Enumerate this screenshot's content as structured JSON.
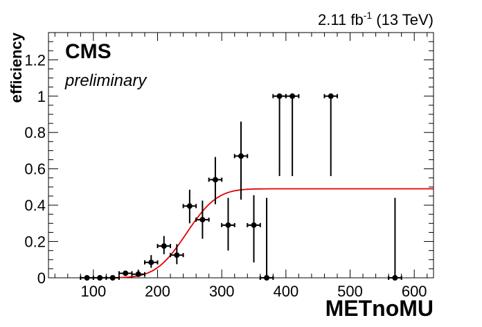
{
  "chart_data": {
    "type": "scatter",
    "xlabel": "METnoMU",
    "ylabel": "efficiency",
    "xlim": [
      30,
      630
    ],
    "ylim": [
      0,
      1.35
    ],
    "x_ticks": [
      "100",
      "200",
      "300",
      "400",
      "500",
      "600"
    ],
    "y_ticks": [
      "0",
      "0.2",
      "0.4",
      "0.6",
      "0.8",
      "1",
      "1.2"
    ],
    "lumi_label": "2.11 fb",
    "lumi_exponent": "-1",
    "energy_label": " (13 TeV)",
    "experiment": "CMS",
    "status": "preliminary",
    "grid": false,
    "colors": {
      "points": "#000000",
      "fit": "#e00000"
    },
    "points": [
      {
        "x": 90,
        "xerr": 10,
        "y": 0.0,
        "ylo": 0.0,
        "yhi": 0.005
      },
      {
        "x": 110,
        "xerr": 10,
        "y": 0.0,
        "ylo": 0.0,
        "yhi": 0.005
      },
      {
        "x": 130,
        "xerr": 10,
        "y": 0.0,
        "ylo": 0.0,
        "yhi": 0.008
      },
      {
        "x": 150,
        "xerr": 10,
        "y": 0.025,
        "ylo": 0.015,
        "yhi": 0.04
      },
      {
        "x": 170,
        "xerr": 10,
        "y": 0.02,
        "ylo": 0.005,
        "yhi": 0.045
      },
      {
        "x": 190,
        "xerr": 10,
        "y": 0.085,
        "ylo": 0.055,
        "yhi": 0.125
      },
      {
        "x": 210,
        "xerr": 10,
        "y": 0.175,
        "ylo": 0.13,
        "yhi": 0.23
      },
      {
        "x": 230,
        "xerr": 10,
        "y": 0.125,
        "ylo": 0.075,
        "yhi": 0.185
      },
      {
        "x": 250,
        "xerr": 10,
        "y": 0.395,
        "ylo": 0.3,
        "yhi": 0.485
      },
      {
        "x": 270,
        "xerr": 10,
        "y": 0.32,
        "ylo": 0.215,
        "yhi": 0.425
      },
      {
        "x": 290,
        "xerr": 10,
        "y": 0.54,
        "ylo": 0.405,
        "yhi": 0.665
      },
      {
        "x": 310,
        "xerr": 10,
        "y": 0.29,
        "ylo": 0.15,
        "yhi": 0.44
      },
      {
        "x": 330,
        "xerr": 10,
        "y": 0.67,
        "ylo": 0.43,
        "yhi": 0.86
      },
      {
        "x": 350,
        "xerr": 10,
        "y": 0.29,
        "ylo": 0.085,
        "yhi": 0.455
      },
      {
        "x": 370,
        "xerr": 10,
        "y": 0.0,
        "ylo": 0.0,
        "yhi": 0.44
      },
      {
        "x": 390,
        "xerr": 10,
        "y": 1.0,
        "ylo": 0.56,
        "yhi": 1.0
      },
      {
        "x": 410,
        "xerr": 10,
        "y": 1.0,
        "ylo": 0.56,
        "yhi": 1.0
      },
      {
        "x": 470,
        "xerr": 10,
        "y": 1.0,
        "ylo": 0.56,
        "yhi": 1.0
      },
      {
        "x": 570,
        "xerr": 10,
        "y": 0.0,
        "ylo": 0.0,
        "yhi": 0.44
      }
    ],
    "fit": {
      "type": "erf",
      "plateau": 0.49,
      "midpoint": 245,
      "width": 45,
      "xrange": [
        130,
        630
      ]
    }
  }
}
